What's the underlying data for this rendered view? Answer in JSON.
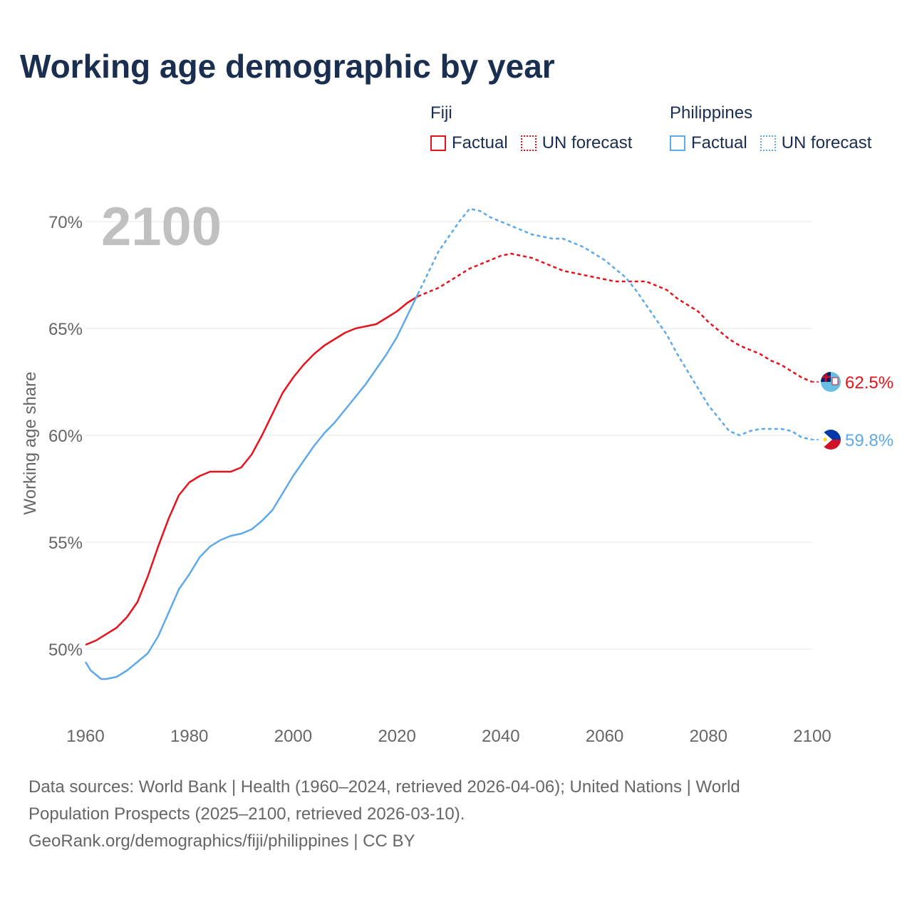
{
  "title": "Working age demographic by year",
  "legend": {
    "groups": [
      {
        "name": "Fiji",
        "color": "#e8121c",
        "factual_label": "Factual",
        "forecast_label": "UN forecast"
      },
      {
        "name": "Philippines",
        "color": "#5da9e9",
        "factual_label": "Factual",
        "forecast_label": "UN forecast"
      }
    ]
  },
  "footer": {
    "line1": "Data sources: World Bank | Health (1960–2024, retrieved 2026-04-06); United Nations | World",
    "line2": "Population Prospects (2025–2100, retrieved 2026-03-10).",
    "line3": "GeoRank.org/demographics/fiji/philippines | CC BY"
  },
  "chart_data": {
    "type": "line",
    "title": "Working age demographic by year",
    "year_watermark": "2100",
    "xlabel": "",
    "ylabel": "Working age share",
    "xlim": [
      1960,
      2100
    ],
    "ylim": [
      47,
      71
    ],
    "x_ticks": [
      1960,
      1980,
      2000,
      2020,
      2040,
      2060,
      2080,
      2100
    ],
    "x_tick_labels": [
      "1960",
      "1980",
      "2000",
      "2020",
      "2040",
      "2060",
      "2080",
      "2100"
    ],
    "y_ticks": [
      50,
      55,
      60,
      65,
      70
    ],
    "y_tick_labels": [
      "50%",
      "55%",
      "60%",
      "65%",
      "70%"
    ],
    "grid": true,
    "forecast_start": 2024,
    "series": [
      {
        "name": "Fiji",
        "color": "#e8121c",
        "end_label": "62.5%",
        "points": [
          [
            1960,
            50.2
          ],
          [
            1962,
            50.4
          ],
          [
            1964,
            50.7
          ],
          [
            1966,
            51.0
          ],
          [
            1968,
            51.5
          ],
          [
            1970,
            52.2
          ],
          [
            1972,
            53.4
          ],
          [
            1974,
            54.8
          ],
          [
            1976,
            56.1
          ],
          [
            1978,
            57.2
          ],
          [
            1980,
            57.8
          ],
          [
            1982,
            58.1
          ],
          [
            1984,
            58.3
          ],
          [
            1986,
            58.3
          ],
          [
            1988,
            58.3
          ],
          [
            1990,
            58.5
          ],
          [
            1992,
            59.1
          ],
          [
            1994,
            60.0
          ],
          [
            1996,
            61.0
          ],
          [
            1998,
            62.0
          ],
          [
            2000,
            62.7
          ],
          [
            2002,
            63.3
          ],
          [
            2004,
            63.8
          ],
          [
            2006,
            64.2
          ],
          [
            2008,
            64.5
          ],
          [
            2010,
            64.8
          ],
          [
            2012,
            65.0
          ],
          [
            2014,
            65.1
          ],
          [
            2016,
            65.2
          ],
          [
            2018,
            65.5
          ],
          [
            2020,
            65.8
          ],
          [
            2022,
            66.2
          ],
          [
            2024,
            66.5
          ],
          [
            2026,
            66.7
          ],
          [
            2028,
            66.9
          ],
          [
            2030,
            67.2
          ],
          [
            2032,
            67.5
          ],
          [
            2034,
            67.8
          ],
          [
            2036,
            68.0
          ],
          [
            2038,
            68.2
          ],
          [
            2040,
            68.4
          ],
          [
            2042,
            68.5
          ],
          [
            2044,
            68.4
          ],
          [
            2046,
            68.3
          ],
          [
            2048,
            68.1
          ],
          [
            2050,
            67.9
          ],
          [
            2052,
            67.7
          ],
          [
            2054,
            67.6
          ],
          [
            2056,
            67.5
          ],
          [
            2058,
            67.4
          ],
          [
            2060,
            67.3
          ],
          [
            2062,
            67.2
          ],
          [
            2064,
            67.2
          ],
          [
            2066,
            67.2
          ],
          [
            2068,
            67.2
          ],
          [
            2070,
            67.0
          ],
          [
            2072,
            66.8
          ],
          [
            2074,
            66.4
          ],
          [
            2076,
            66.1
          ],
          [
            2078,
            65.8
          ],
          [
            2080,
            65.3
          ],
          [
            2082,
            64.9
          ],
          [
            2084,
            64.5
          ],
          [
            2086,
            64.2
          ],
          [
            2088,
            64.0
          ],
          [
            2090,
            63.8
          ],
          [
            2092,
            63.5
          ],
          [
            2094,
            63.3
          ],
          [
            2096,
            63.0
          ],
          [
            2098,
            62.7
          ],
          [
            2100,
            62.5
          ]
        ]
      },
      {
        "name": "Philippines",
        "color": "#5da9e9",
        "end_label": "59.8%",
        "points": [
          [
            1960,
            49.4
          ],
          [
            1961,
            49.0
          ],
          [
            1962,
            48.8
          ],
          [
            1963,
            48.6
          ],
          [
            1964,
            48.6
          ],
          [
            1966,
            48.7
          ],
          [
            1968,
            49.0
          ],
          [
            1970,
            49.4
          ],
          [
            1972,
            49.8
          ],
          [
            1974,
            50.6
          ],
          [
            1976,
            51.7
          ],
          [
            1978,
            52.8
          ],
          [
            1980,
            53.5
          ],
          [
            1982,
            54.3
          ],
          [
            1984,
            54.8
          ],
          [
            1986,
            55.1
          ],
          [
            1988,
            55.3
          ],
          [
            1990,
            55.4
          ],
          [
            1992,
            55.6
          ],
          [
            1994,
            56.0
          ],
          [
            1996,
            56.5
          ],
          [
            1998,
            57.3
          ],
          [
            2000,
            58.1
          ],
          [
            2002,
            58.8
          ],
          [
            2004,
            59.5
          ],
          [
            2006,
            60.1
          ],
          [
            2008,
            60.6
          ],
          [
            2010,
            61.2
          ],
          [
            2012,
            61.8
          ],
          [
            2014,
            62.4
          ],
          [
            2016,
            63.1
          ],
          [
            2018,
            63.8
          ],
          [
            2020,
            64.6
          ],
          [
            2022,
            65.6
          ],
          [
            2024,
            66.6
          ],
          [
            2026,
            67.6
          ],
          [
            2028,
            68.6
          ],
          [
            2030,
            69.3
          ],
          [
            2032,
            70.0
          ],
          [
            2034,
            70.6
          ],
          [
            2036,
            70.5
          ],
          [
            2038,
            70.2
          ],
          [
            2040,
            70.0
          ],
          [
            2042,
            69.8
          ],
          [
            2044,
            69.6
          ],
          [
            2046,
            69.4
          ],
          [
            2048,
            69.3
          ],
          [
            2050,
            69.2
          ],
          [
            2052,
            69.2
          ],
          [
            2054,
            69.0
          ],
          [
            2056,
            68.8
          ],
          [
            2058,
            68.5
          ],
          [
            2060,
            68.2
          ],
          [
            2062,
            67.8
          ],
          [
            2064,
            67.4
          ],
          [
            2066,
            66.8
          ],
          [
            2068,
            66.1
          ],
          [
            2070,
            65.4
          ],
          [
            2072,
            64.7
          ],
          [
            2074,
            63.8
          ],
          [
            2076,
            63.0
          ],
          [
            2078,
            62.2
          ],
          [
            2080,
            61.4
          ],
          [
            2082,
            60.8
          ],
          [
            2084,
            60.2
          ],
          [
            2086,
            60.0
          ],
          [
            2088,
            60.2
          ],
          [
            2090,
            60.3
          ],
          [
            2092,
            60.3
          ],
          [
            2094,
            60.3
          ],
          [
            2096,
            60.2
          ],
          [
            2098,
            59.9
          ],
          [
            2100,
            59.8
          ]
        ]
      }
    ]
  }
}
